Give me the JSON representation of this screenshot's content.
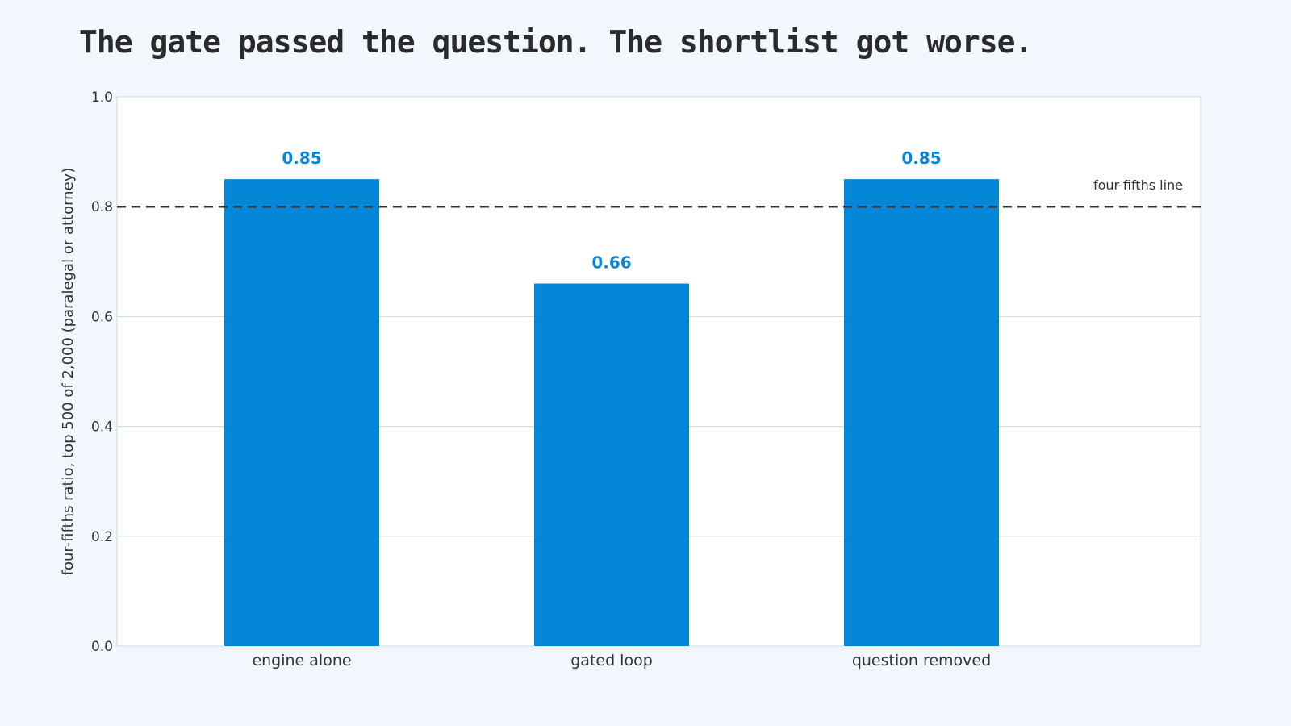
{
  "chart_data": {
    "type": "bar",
    "title": "The gate passed the question. The shortlist got worse.",
    "ylabel": "four-fifths ratio, top 500 of 2,000 (paralegal or attorney)",
    "xlabel": "",
    "categories": [
      "engine alone",
      "gated loop",
      "question removed"
    ],
    "values": [
      0.85,
      0.66,
      0.85
    ],
    "data_labels": [
      "0.85",
      "0.66",
      "0.85"
    ],
    "ylim": [
      0,
      1
    ],
    "yticks": [
      0.0,
      0.2,
      0.4,
      0.6,
      0.8,
      1.0
    ],
    "ytick_labels": [
      "0.0",
      "0.2",
      "0.4",
      "0.6",
      "0.8",
      "1.0"
    ],
    "reference_line": {
      "value": 0.8,
      "label": "four-fifths line",
      "style": "dashed"
    },
    "grid": true,
    "bar_color": "#0587d8",
    "grid_color": "#c9d9e8",
    "ref_line_color": "#333333",
    "plot_background": "#ffffff",
    "page_background": "#f1f7fd"
  }
}
